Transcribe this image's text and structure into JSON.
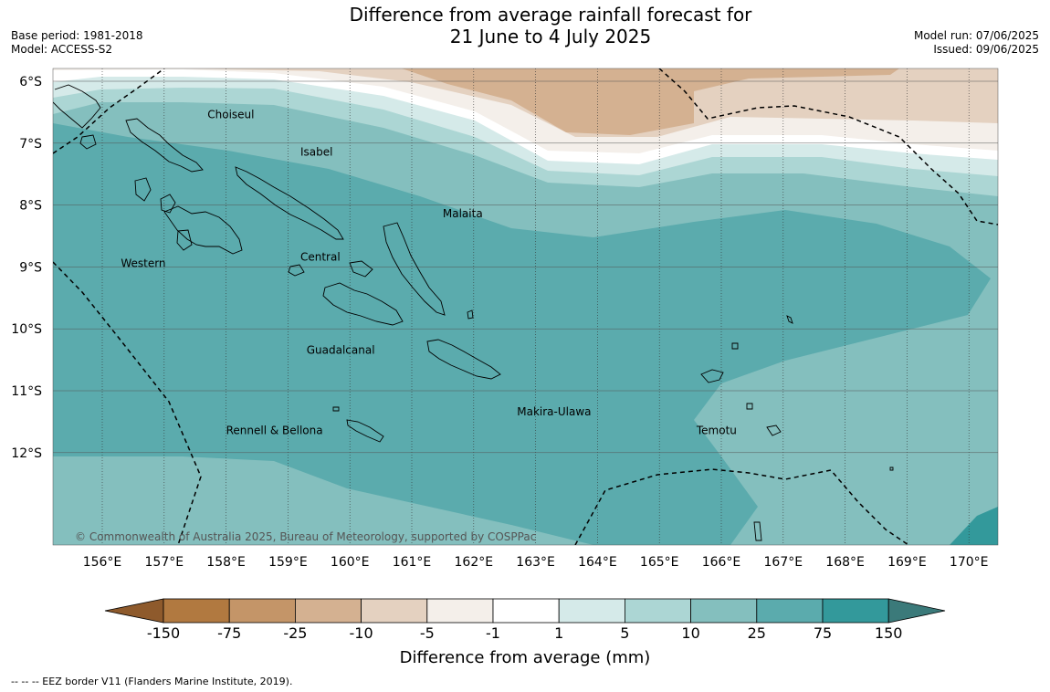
{
  "title_line1": "Difference from average rainfall forecast for",
  "title_line2": "21 June to 4 July 2025",
  "meta_left": {
    "base_period": "Base period: 1981-2018",
    "model": "Model: ACCESS-S2"
  },
  "meta_right": {
    "model_run": "Model run: 07/06/2025",
    "issued": "Issued: 09/06/2025"
  },
  "map": {
    "lat_labels": [
      "6°S",
      "7°S",
      "8°S",
      "9°S",
      "10°S",
      "11°S",
      "12°S"
    ],
    "lon_labels": [
      "156°E",
      "157°E",
      "158°E",
      "159°E",
      "160°E",
      "161°E",
      "162°E",
      "163°E",
      "164°E",
      "165°E",
      "166°E",
      "167°E",
      "168°E",
      "169°E",
      "170°E"
    ],
    "places": [
      {
        "name": "Choiseul",
        "lon": 157.7,
        "lat": -6.6
      },
      {
        "name": "Isabel",
        "lon": 159.2,
        "lat": -7.2
      },
      {
        "name": "Malaita",
        "lon": 161.5,
        "lat": -8.2
      },
      {
        "name": "Western",
        "lon": 156.3,
        "lat": -9.0
      },
      {
        "name": "Central",
        "lon": 159.2,
        "lat": -8.9
      },
      {
        "name": "Guadalcanal",
        "lon": 159.3,
        "lat": -10.4
      },
      {
        "name": "Makira-Ulawa",
        "lon": 162.7,
        "lat": -11.4
      },
      {
        "name": "Rennell & Bellona",
        "lon": 158.0,
        "lat": -11.7
      },
      {
        "name": "Temotu",
        "lon": 165.6,
        "lat": -11.7
      }
    ],
    "copyright": "© Commonwealth of Australia 2025, Bureau of Meteorology, supported by COSPPac"
  },
  "colorbar": {
    "ticks": [
      "-150",
      "-75",
      "-25",
      "-10",
      "-5",
      "-1",
      "1",
      "5",
      "10",
      "25",
      "75",
      "150"
    ],
    "colors": [
      "#b17940",
      "#c49568",
      "#d4b191",
      "#e4d1c0",
      "#f4efea",
      "#ffffff",
      "#d5eae9",
      "#acd6d4",
      "#84bfbe",
      "#5babad",
      "#33999b"
    ],
    "under_color": "#8e5a2c",
    "over_color": "#3b7a7a",
    "title": "Difference from average (mm)"
  },
  "footnote": "--  --  -- EEZ border V11 (Flanders Marine Institute, 2019)."
}
